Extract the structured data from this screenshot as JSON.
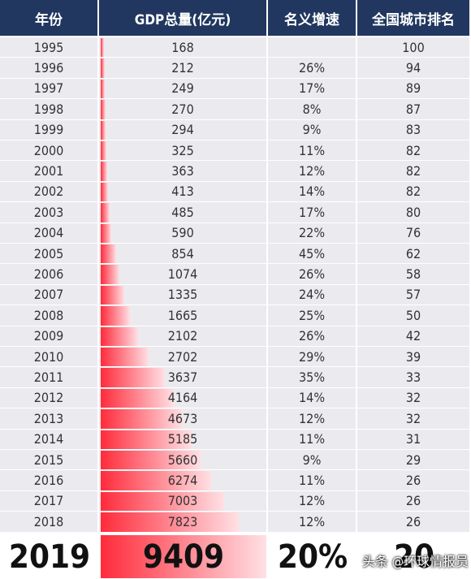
{
  "header": [
    "年份",
    "GDP总量(亿元)",
    "名义增速",
    "全国城市排名"
  ],
  "rows": [
    {
      "year": "1995",
      "gdp": 168,
      "growth": null,
      "rank": 100
    },
    {
      "year": "1996",
      "gdp": 212,
      "growth": "26%",
      "rank": 94
    },
    {
      "year": "1997",
      "gdp": 249,
      "growth": "17%",
      "rank": 89
    },
    {
      "year": "1998",
      "gdp": 270,
      "growth": "8%",
      "rank": 87
    },
    {
      "year": "1999",
      "gdp": 294,
      "growth": "9%",
      "rank": 83
    },
    {
      "year": "2000",
      "gdp": 325,
      "growth": "11%",
      "rank": 82
    },
    {
      "year": "2001",
      "gdp": 363,
      "growth": "12%",
      "rank": 82
    },
    {
      "year": "2002",
      "gdp": 413,
      "growth": "14%",
      "rank": 82
    },
    {
      "year": "2003",
      "gdp": 485,
      "growth": "17%",
      "rank": 80
    },
    {
      "year": "2004",
      "gdp": 590,
      "growth": "22%",
      "rank": 76
    },
    {
      "year": "2005",
      "gdp": 854,
      "growth": "45%",
      "rank": 62
    },
    {
      "year": "2006",
      "gdp": 1074,
      "growth": "26%",
      "rank": 58
    },
    {
      "year": "2007",
      "gdp": 1335,
      "growth": "24%",
      "rank": 57
    },
    {
      "year": "2008",
      "gdp": 1665,
      "growth": "25%",
      "rank": 50
    },
    {
      "year": "2009",
      "gdp": 2102,
      "growth": "26%",
      "rank": 42
    },
    {
      "year": "2010",
      "gdp": 2702,
      "growth": "29%",
      "rank": 39
    },
    {
      "year": "2011",
      "gdp": 3637,
      "growth": "35%",
      "rank": 33
    },
    {
      "year": "2012",
      "gdp": 4164,
      "growth": "14%",
      "rank": 32
    },
    {
      "year": "2013",
      "gdp": 4673,
      "growth": "12%",
      "rank": 32
    },
    {
      "year": "2014",
      "gdp": 5185,
      "growth": "11%",
      "rank": 31
    },
    {
      "year": "2015",
      "gdp": 5660,
      "growth": "9%",
      "rank": 29
    },
    {
      "year": "2016",
      "gdp": 6274,
      "growth": "11%",
      "rank": 26
    },
    {
      "year": "2017",
      "gdp": 7003,
      "growth": "12%",
      "rank": 26
    },
    {
      "year": "2018",
      "gdp": 7823,
      "growth": "12%",
      "rank": 26
    },
    {
      "year": "2019",
      "gdp": 9409,
      "growth": "20%",
      "rank": 20
    }
  ],
  "watermark": "头条 @环球情报员"
}
